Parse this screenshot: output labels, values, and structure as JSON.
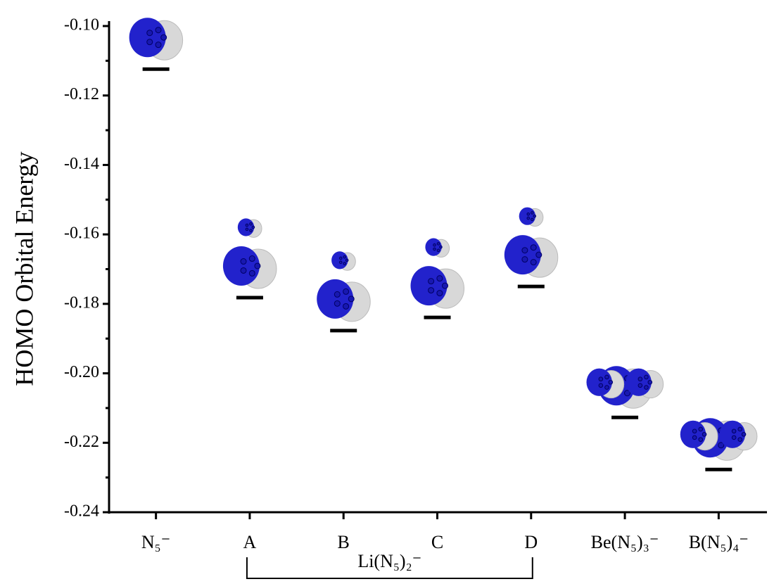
{
  "chart_data": {
    "type": "level",
    "y_label": "HOMO Orbital Energy",
    "categories": [
      "N₅⁻",
      "A",
      "B",
      "C",
      "D",
      "Be(N₅)₃⁻",
      "B(N₅)₄⁻"
    ],
    "group_label": "Li(N₅)₂⁻",
    "values": [
      -0.1124,
      -0.1782,
      -0.1877,
      -0.1839,
      -0.175,
      -0.2127,
      -0.2277
    ],
    "color": "#000000",
    "ylim": [
      -0.24,
      -0.1
    ],
    "yticks": [
      {
        "value": -0.24,
        "label": "-0.24"
      },
      {
        "value": -0.22,
        "label": "-0.22"
      },
      {
        "value": -0.2,
        "label": "-0.20"
      },
      {
        "value": -0.18,
        "label": "-0.18"
      },
      {
        "value": -0.16,
        "label": "-0.16"
      },
      {
        "value": -0.14,
        "label": "-0.14"
      },
      {
        "value": -0.12,
        "label": "-0.12"
      },
      {
        "value": -0.1,
        "label": "-0.10"
      }
    ]
  }
}
